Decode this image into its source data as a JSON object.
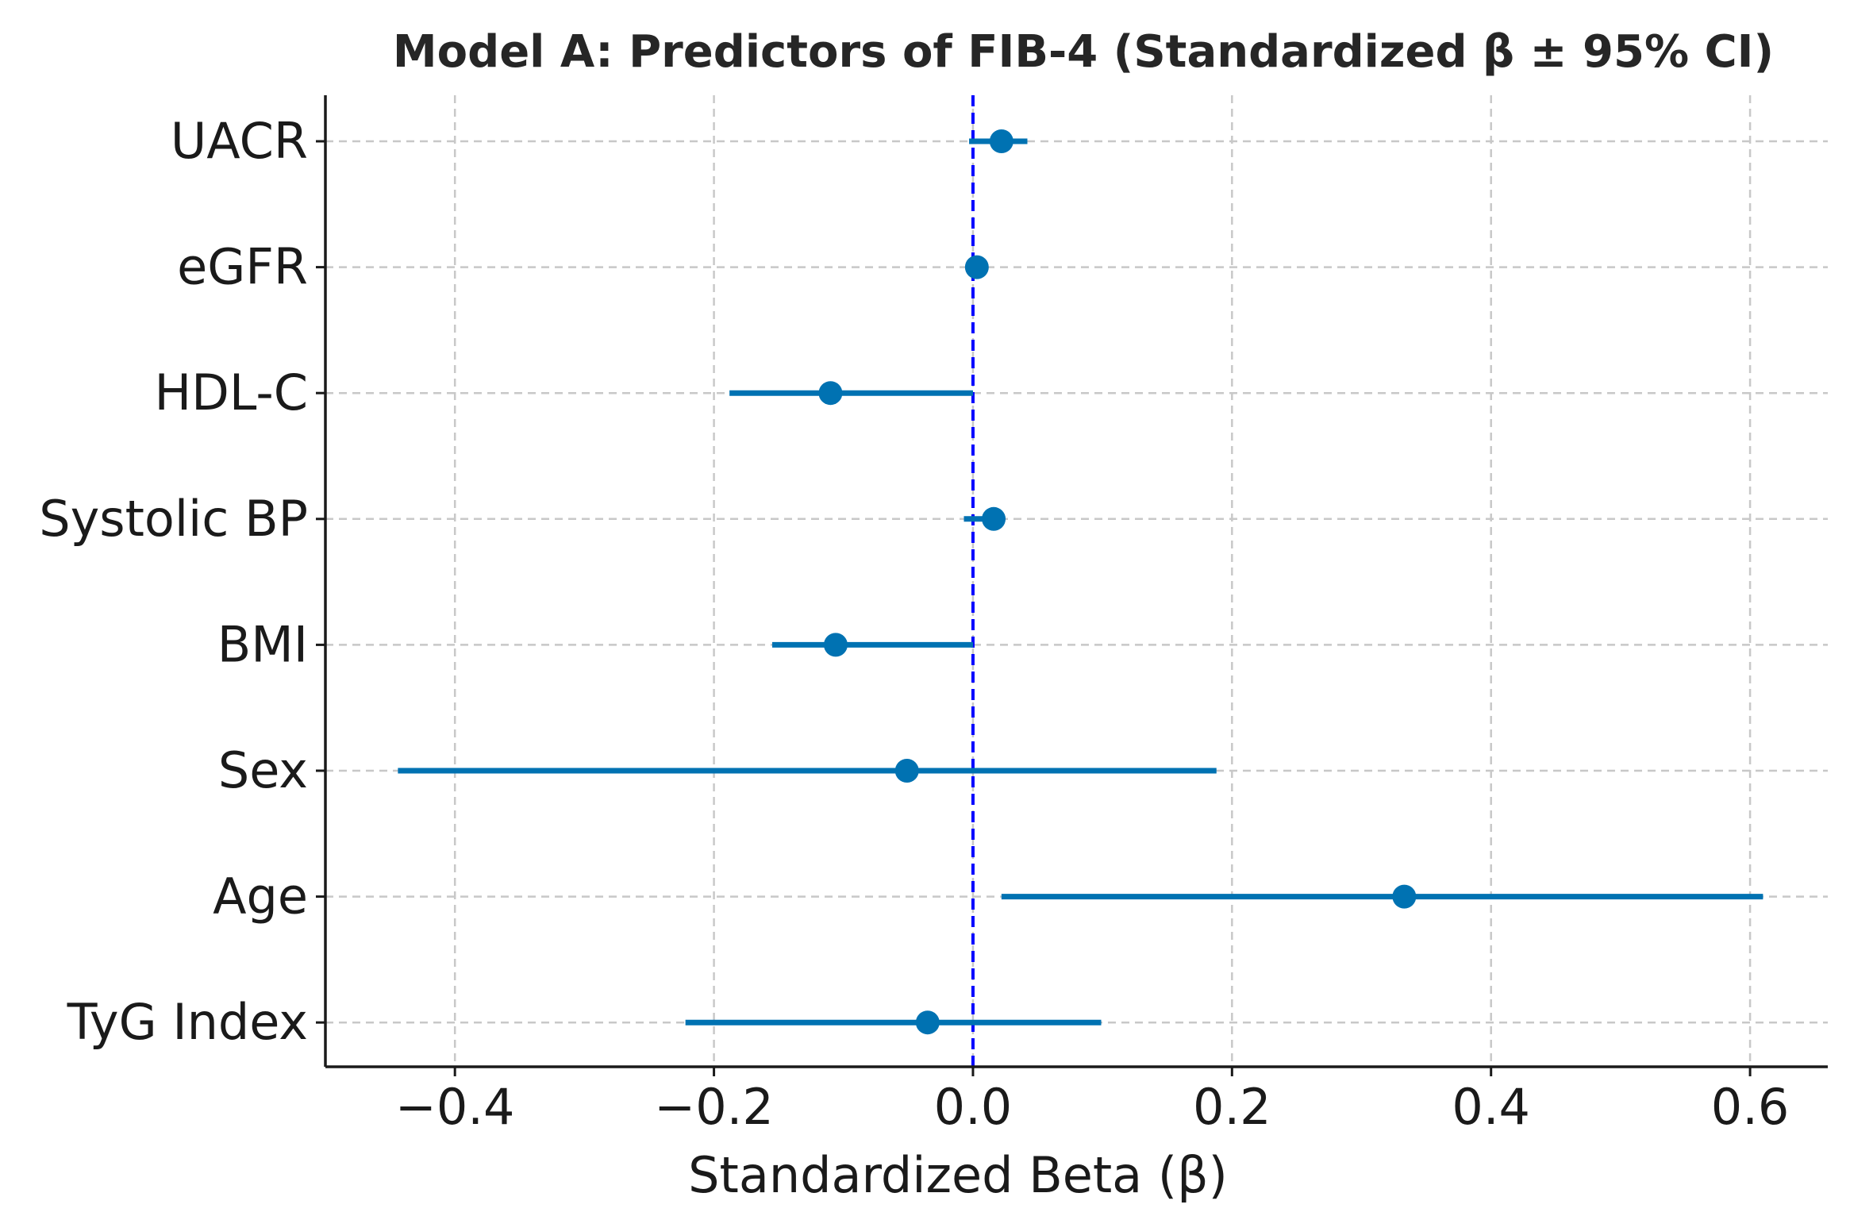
{
  "chart_data": {
    "type": "forest",
    "title": "Model A: Predictors of FIB-4 (Standardized β ± 95% CI)",
    "xlabel": "Standardized Beta (β)",
    "ylabel": "",
    "xlim": [
      -0.5,
      0.66
    ],
    "xticks": [
      -0.4,
      -0.2,
      0.0,
      0.2,
      0.4,
      0.6
    ],
    "xtick_labels": [
      "−0.4",
      "−0.2",
      "0.0",
      "0.2",
      "0.4",
      "0.6"
    ],
    "reference_line": 0.0,
    "grid": true,
    "series_color": "#0072b2",
    "reference_color": "#0000ff",
    "categories": [
      "UACR",
      "eGFR",
      "HDL-C",
      "Systolic BP",
      "BMI",
      "Sex",
      "Age",
      "TyG Index"
    ],
    "points": [
      {
        "label": "UACR",
        "beta": 0.022,
        "ci_low": -0.003,
        "ci_high": 0.042
      },
      {
        "label": "eGFR",
        "beta": 0.003,
        "ci_low": -0.002,
        "ci_high": 0.008
      },
      {
        "label": "HDL-C",
        "beta": -0.11,
        "ci_low": -0.188,
        "ci_high": 0.0
      },
      {
        "label": "Systolic BP",
        "beta": 0.016,
        "ci_low": -0.007,
        "ci_high": 0.02
      },
      {
        "label": "BMI",
        "beta": -0.106,
        "ci_low": -0.155,
        "ci_high": 0.0
      },
      {
        "label": "Sex",
        "beta": -0.051,
        "ci_low": -0.444,
        "ci_high": 0.188
      },
      {
        "label": "Age",
        "beta": 0.333,
        "ci_low": 0.022,
        "ci_high": 0.61
      },
      {
        "label": "TyG Index",
        "beta": -0.035,
        "ci_low": -0.222,
        "ci_high": 0.099
      }
    ]
  }
}
